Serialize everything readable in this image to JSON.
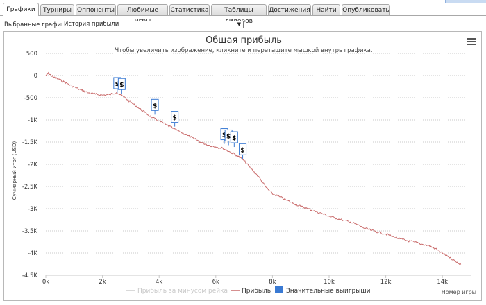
{
  "tabs": [
    {
      "label": "Графики",
      "active": true
    },
    {
      "label": "Турниры"
    },
    {
      "label": "Оппоненты"
    },
    {
      "label": "Любимые игры"
    },
    {
      "label": "Статистика"
    },
    {
      "label": "Таблицы лидеров"
    },
    {
      "label": "Достижения"
    },
    {
      "label": "Найти"
    },
    {
      "label": "Опубликовать"
    }
  ],
  "chart_selector": {
    "label": "Выбранные графики:",
    "value": "История прибыли"
  },
  "menu_icon": "hamburger-menu-icon",
  "chart_data": {
    "type": "line",
    "title": "Общая прибыль",
    "subtitle": "Чтобы увеличить изображение, кликните и перетащите мышкой внутрь графика.",
    "xlabel": "Номер игры",
    "ylabel": "Суммарный итог (USD)",
    "xlim": [
      0,
      15000
    ],
    "ylim": [
      -4500,
      500
    ],
    "x_ticks": [
      "0k",
      "2k",
      "4k",
      "6k",
      "8k",
      "10k",
      "12k",
      "14k"
    ],
    "y_ticks": [
      "500",
      "0",
      "-500",
      "-1K",
      "-1.5K",
      "-2K",
      "-2.5K",
      "-3K",
      "-3.5K",
      "-4K",
      "-4.5K"
    ],
    "grid": true,
    "legend_placement": "bottom-center",
    "series": [
      {
        "name": "Прибыль за минусом рейка",
        "color": "#cccccc",
        "hidden": true,
        "x": [],
        "y": []
      },
      {
        "name": "Прибыль",
        "color": "#c96a6a",
        "x": [
          0,
          100,
          250,
          500,
          750,
          1000,
          1250,
          1500,
          1750,
          2000,
          2250,
          2500,
          2750,
          3000,
          3250,
          3500,
          3750,
          4000,
          4250,
          4500,
          4750,
          5000,
          5250,
          5500,
          5750,
          6000,
          6250,
          6500,
          6750,
          7000,
          7250,
          7500,
          7750,
          8000,
          8250,
          8500,
          8750,
          9000,
          9250,
          9500,
          9750,
          10000,
          10250,
          10500,
          10750,
          11000,
          11250,
          11500,
          11750,
          12000,
          12250,
          12500,
          12750,
          13000,
          13250,
          13500,
          13750,
          14000,
          14250,
          14500,
          14650
        ],
        "y": [
          0,
          50,
          -30,
          -100,
          -180,
          -260,
          -330,
          -390,
          -420,
          -440,
          -430,
          -380,
          -480,
          -600,
          -720,
          -830,
          -950,
          -1020,
          -1110,
          -1190,
          -1270,
          -1350,
          -1430,
          -1510,
          -1570,
          -1610,
          -1640,
          -1720,
          -1800,
          -1920,
          -2100,
          -2270,
          -2500,
          -2670,
          -2730,
          -2810,
          -2880,
          -2950,
          -3000,
          -3060,
          -3110,
          -3170,
          -3220,
          -3260,
          -3300,
          -3360,
          -3440,
          -3490,
          -3530,
          -3570,
          -3630,
          -3680,
          -3720,
          -3750,
          -3800,
          -3830,
          -3900,
          -4000,
          -4110,
          -4210,
          -4260
        ]
      }
    ],
    "significant_wins": {
      "name": "Значительные выигрыши",
      "color": "#3a7ad3",
      "symbol": "$",
      "points": [
        {
          "x": 2520,
          "y": -390
        },
        {
          "x": 2680,
          "y": -410
        },
        {
          "x": 3850,
          "y": -880
        },
        {
          "x": 4550,
          "y": -1150
        },
        {
          "x": 6300,
          "y": -1540
        },
        {
          "x": 6450,
          "y": -1570
        },
        {
          "x": 6650,
          "y": -1610
        },
        {
          "x": 6950,
          "y": -1880
        }
      ]
    }
  }
}
